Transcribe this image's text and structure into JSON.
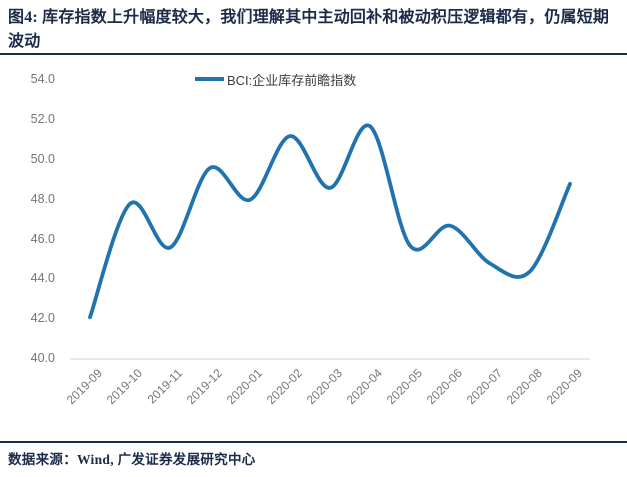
{
  "title": "图4: 库存指数上升幅度较大，我们理解其中主动回补和被动积压逻辑都有，仍属短期波动",
  "legend": {
    "label": "BCI:企业库存前瞻指数"
  },
  "footer": {
    "source": "数据来源：Wind,  广发证券发展研究中心"
  },
  "colors": {
    "line": "#2173ad",
    "title_text": "#1b2b4a",
    "footer_text": "#1b2b4a",
    "rule": "#1b2b4a",
    "axis_text": "#757575",
    "baseline": "#d9d9d9"
  },
  "chart_data": {
    "type": "line",
    "title": "图4: 库存指数上升幅度较大，我们理解其中主动回补和被动积压逻辑都有，仍属短期波动",
    "categories": [
      "2019-09",
      "2019-10",
      "2019-11",
      "2019-12",
      "2020-01",
      "2020-02",
      "2020-03",
      "2020-04",
      "2020-05",
      "2020-06",
      "2020-07",
      "2020-08",
      "2020-09"
    ],
    "series": [
      {
        "name": "BCI:企业库存前瞻指数",
        "values": [
          42.1,
          47.8,
          45.6,
          49.6,
          48.0,
          51.2,
          48.6,
          51.7,
          45.7,
          46.7,
          44.8,
          44.4,
          48.8
        ]
      }
    ],
    "xlabel": "",
    "ylabel": "",
    "ylim": [
      40,
      54
    ],
    "ytick_step": 2,
    "ytick_labels": [
      "54.0",
      "52.0",
      "50.0",
      "48.0",
      "46.0",
      "44.0",
      "42.0",
      "40.0"
    ],
    "grid": false,
    "smooth": true,
    "legend_position": "top-center",
    "source_note": "数据来源：Wind,  广发证券发展研究中心"
  }
}
